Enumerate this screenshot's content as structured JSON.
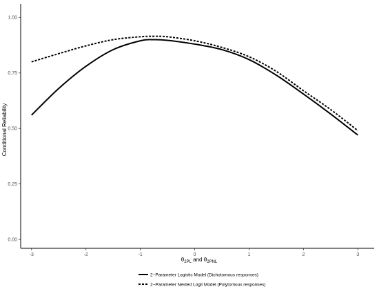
{
  "chart_data": {
    "type": "line",
    "title": "",
    "xlabel": "θ2PL and θ2PNL",
    "xlabel_parts": {
      "theta1": "θ",
      "sub1": "2PL",
      "and": " and ",
      "theta2": "θ",
      "sub2": "2PNL"
    },
    "ylabel": "Conditional Reliability",
    "xlim": [
      -3.2,
      3.3
    ],
    "ylim": [
      -0.04,
      1.06
    ],
    "xticks": [
      -3,
      -2,
      -1,
      0,
      1,
      2,
      3
    ],
    "xtick_labels": [
      "-3",
      "-2",
      "-1",
      "0",
      "1",
      "2",
      "3"
    ],
    "yticks": [
      0,
      0.25,
      0.5,
      0.75,
      1
    ],
    "ytick_labels": [
      "0.00",
      "0.25",
      "0.50",
      "0.75",
      "1.00"
    ],
    "grid": false,
    "legend_position": "bottom",
    "x": [
      -3,
      -2.5,
      -2,
      -1.5,
      -1,
      -0.75,
      -0.5,
      0,
      0.5,
      1,
      1.5,
      2,
      2.5,
      3
    ],
    "series": [
      {
        "name": "2−Parameter Logistic Model (Dichotomous responses)",
        "style": "solid",
        "color": "#000000",
        "values": [
          0.56,
          0.68,
          0.78,
          0.855,
          0.895,
          0.9,
          0.897,
          0.88,
          0.855,
          0.81,
          0.74,
          0.655,
          0.565,
          0.47
        ]
      },
      {
        "name": "2−Parameter Nested Logit Model (Polytomous responses)",
        "style": "dashed",
        "color": "#000000",
        "values": [
          0.8,
          0.837,
          0.872,
          0.9,
          0.913,
          0.915,
          0.913,
          0.895,
          0.865,
          0.823,
          0.757,
          0.67,
          0.585,
          0.49
        ]
      }
    ]
  }
}
